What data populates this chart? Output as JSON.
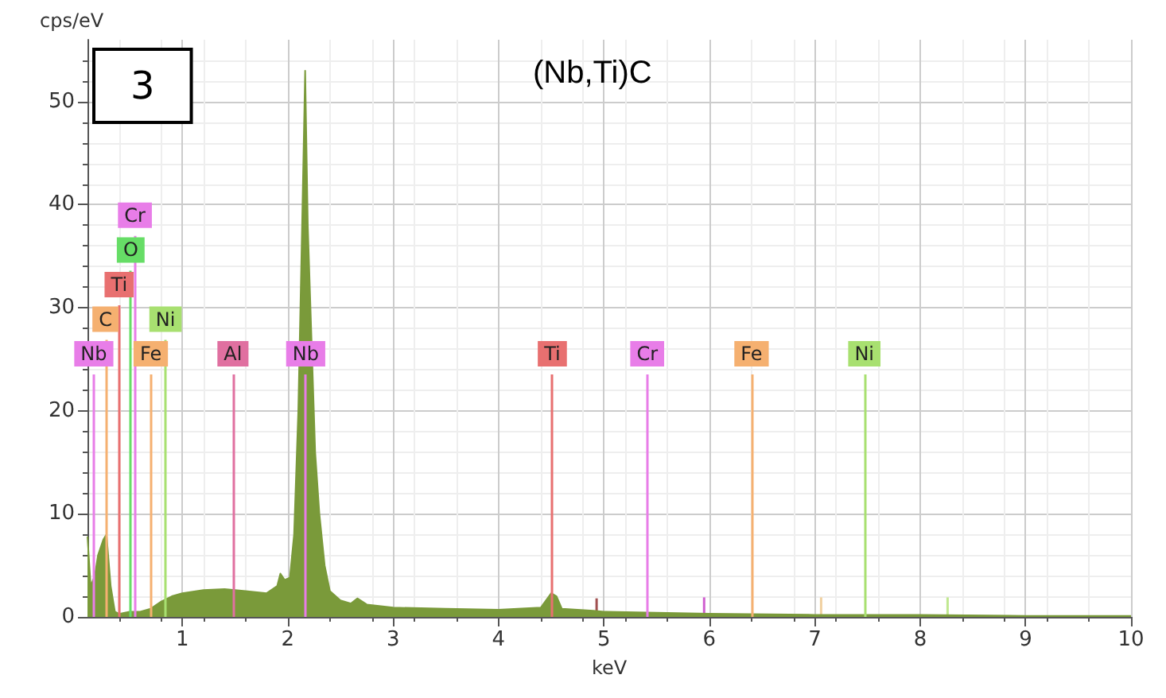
{
  "chart_data": {
    "type": "area",
    "xlabel": "keV",
    "ylabel": "cps/eV",
    "annotations": [
      "3",
      "(Nb,Ti)C"
    ],
    "x": [
      0.1,
      0.13,
      0.17,
      0.2,
      0.25,
      0.28,
      0.32,
      0.36,
      0.4,
      0.5,
      0.6,
      0.7,
      0.8,
      0.9,
      1.0,
      1.2,
      1.4,
      1.6,
      1.8,
      1.9,
      1.93,
      1.97,
      2.02,
      2.06,
      2.1,
      2.14,
      2.165,
      2.19,
      2.26,
      2.3,
      2.35,
      2.4,
      2.5,
      2.6,
      2.66,
      2.75,
      3.0,
      3.5,
      4.0,
      4.4,
      4.5,
      4.55,
      4.6,
      4.9,
      5.0,
      5.5,
      6.0,
      7.0,
      8.0,
      9.0,
      10.0
    ],
    "series": [
      {
        "color": "#7a9a3a",
        "values": [
          7.8,
          3,
          4,
          6,
          7.5,
          8,
          3,
          0.5,
          0.3,
          0.5,
          0.5,
          0.8,
          1.5,
          2.0,
          2.3,
          2.6,
          2.7,
          2.5,
          2.3,
          3.0,
          4.2,
          3.6,
          3.8,
          8,
          20,
          40,
          53,
          38,
          16,
          10,
          5,
          2.5,
          1.6,
          1.3,
          1.8,
          1.2,
          0.9,
          0.8,
          0.7,
          0.9,
          2.3,
          2.0,
          0.8,
          0.6,
          0.5,
          0.4,
          0.3,
          0.2,
          0.2,
          0.1,
          0.1
        ]
      },
      {
        "type": "bar",
        "x": [
          4.93,
          5.95,
          7.06,
          8.26
        ],
        "values": [
          1.8,
          1.9,
          1.9,
          1.9
        ],
        "colors": [
          "#a05050",
          "#d060d0",
          "#f0d0a0",
          "#c0e890"
        ]
      }
    ],
    "xlim": [
      0.1,
      10
    ],
    "xticks": [
      1,
      2,
      3,
      4,
      5,
      6,
      7,
      8,
      9,
      10
    ],
    "ylim": [
      0,
      56
    ],
    "yticks": [
      0,
      10,
      20,
      30,
      40,
      50
    ],
    "grid": true,
    "ref_lines": [
      {
        "axis": "x",
        "value": 0.16,
        "label": "Nb",
        "color": "#e87de8"
      },
      {
        "axis": "x",
        "value": 0.27,
        "label": "C",
        "color": "#f5b070"
      },
      {
        "axis": "x",
        "value": 0.4,
        "label": "Ti",
        "color": "#e87070"
      },
      {
        "axis": "x",
        "value": 0.51,
        "label": "O",
        "color": "#66dd66"
      },
      {
        "axis": "x",
        "value": 0.55,
        "label": "Cr",
        "color": "#e87de8"
      },
      {
        "axis": "x",
        "value": 0.7,
        "label": "Fe",
        "color": "#f5b070"
      },
      {
        "axis": "x",
        "value": 0.84,
        "label": "Ni",
        "color": "#a8e070"
      },
      {
        "axis": "x",
        "value": 1.48,
        "label": "Al",
        "color": "#e070a0"
      },
      {
        "axis": "x",
        "value": 2.17,
        "label": "Nb",
        "color": "#e87de8"
      },
      {
        "axis": "x",
        "value": 4.51,
        "label": "Ti",
        "color": "#e87070"
      },
      {
        "axis": "x",
        "value": 5.41,
        "label": "Cr",
        "color": "#e87de8"
      },
      {
        "axis": "x",
        "value": 6.4,
        "label": "Fe",
        "color": "#f5b070"
      },
      {
        "axis": "x",
        "value": 7.47,
        "label": "Ni",
        "color": "#a8e070"
      }
    ]
  }
}
